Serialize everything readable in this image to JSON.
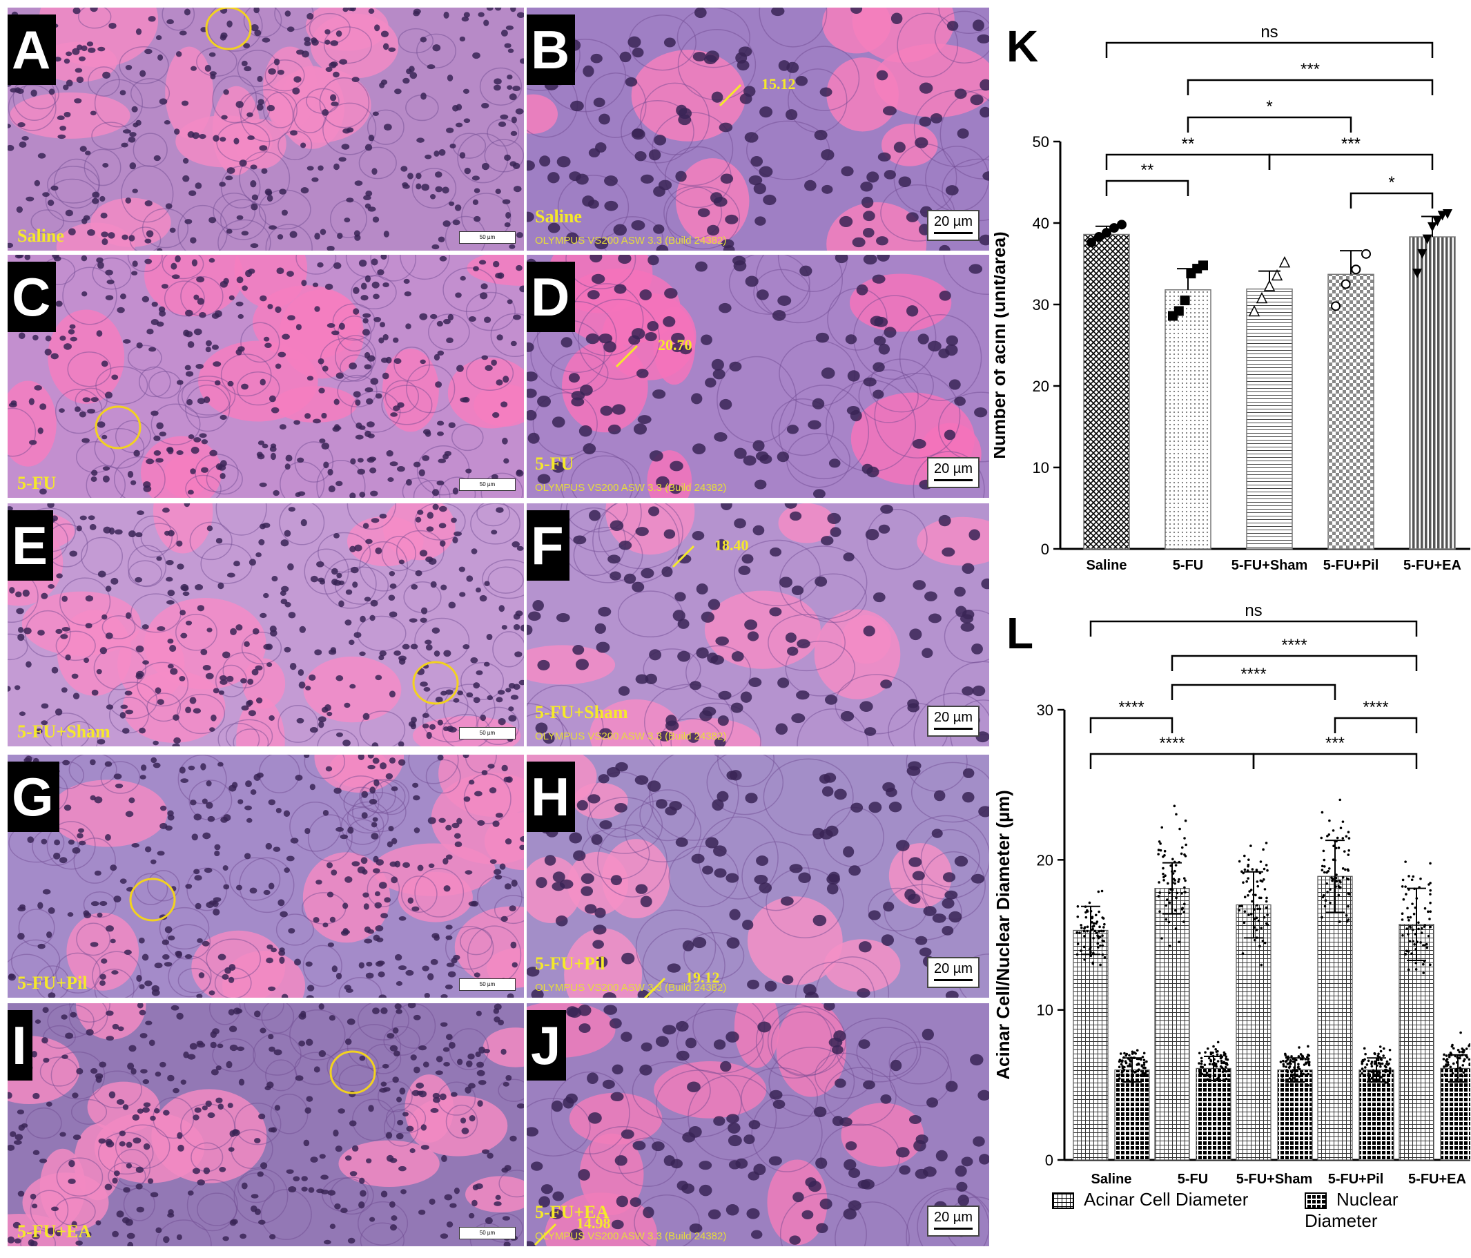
{
  "panels": [
    {
      "letter": "A",
      "group": "Saline",
      "scope": "",
      "measure": "",
      "scale": "50 µm",
      "tint": "#b78ac7",
      "lumen": "#f28ac4"
    },
    {
      "letter": "B",
      "group": "Saline",
      "scope": "OLYMPUS VS200 ASW 3.3 (Build 24382)",
      "measure": "15.12",
      "scale": "20 µm",
      "tint": "#9f7fc4",
      "lumen": "#f47fbd"
    },
    {
      "letter": "C",
      "group": "5-FU",
      "scope": "",
      "measure": "",
      "scale": "50 µm",
      "tint": "#c38fcf",
      "lumen": "#f57ec0"
    },
    {
      "letter": "D",
      "group": "5-FU",
      "scope": "OLYMPUS VS200 ASW 3.3 (Build 24382)",
      "measure": "20.70",
      "scale": "20 µm",
      "tint": "#a884c8",
      "lumen": "#f473bb"
    },
    {
      "letter": "E",
      "group": "5-FU+Sham",
      "scope": "",
      "measure": "",
      "scale": "50 µm",
      "tint": "#c49bd4",
      "lumen": "#f58cc7"
    },
    {
      "letter": "F",
      "group": "5-FU+Sham",
      "scope": "OLYMPUS VS200 ASW 3.3 (Build 24382)",
      "measure": "18.40",
      "scale": "20 µm",
      "tint": "#b593cf",
      "lumen": "#f38cc6"
    },
    {
      "letter": "G",
      "group": "5-FU+Pil",
      "scope": "",
      "measure": "",
      "scale": "50 µm",
      "tint": "#a48bc9",
      "lumen": "#f28ac3"
    },
    {
      "letter": "H",
      "group": "5-FU+Pil",
      "scope": "OLYMPUS VS200 ASW 3.3 (Build 24382)",
      "measure": "19.12",
      "scale": "20 µm",
      "tint": "#a38ec8",
      "lumen": "#f490c6"
    },
    {
      "letter": "I",
      "group": "5-FU+EA",
      "scope": "",
      "measure": "",
      "scale": "50 µm",
      "tint": "#9378b5",
      "lumen": "#f28ac2"
    },
    {
      "letter": "J",
      "group": "5-FU+EA",
      "scope": "OLYMPUS VS200 ASW 3.3 (Build 24382)",
      "measure": "14.98",
      "scale": "20 µm",
      "tint": "#9c80c0",
      "lumen": "#f07cba"
    }
  ],
  "chart_data": [
    {
      "panel_letter": "K",
      "type": "bar",
      "title": "",
      "xlabel": "",
      "ylabel": "Number of acini (unit/area)",
      "ylim": [
        0,
        50
      ],
      "yticks": [
        0,
        10,
        20,
        30,
        40,
        50
      ],
      "categories": [
        "Saline",
        "5-FU",
        "5-FU+Sham",
        "5-FU+Pil",
        "5-FU+EA"
      ],
      "values": [
        38.6,
        31.8,
        31.9,
        33.7,
        38.3
      ],
      "errors": [
        1.0,
        2.6,
        2.2,
        2.9,
        2.5
      ],
      "points": [
        [
          37.6,
          38.3,
          38.8,
          39.4,
          39.8
        ],
        [
          28.6,
          29.2,
          30.5,
          33.8,
          34.4,
          34.8
        ],
        [
          29.2,
          30.8,
          32.3,
          33.6,
          35.2
        ],
        [
          29.8,
          32.5,
          34.3,
          36.2
        ],
        [
          33.8,
          36.2,
          38.0,
          39.5,
          40.2,
          40.9,
          41.1
        ]
      ],
      "point_markers": [
        "circle",
        "square",
        "triangle-up",
        "circle-open",
        "triangle-down"
      ],
      "significance": [
        {
          "from": 0,
          "to": 4,
          "label": "ns"
        },
        {
          "from": 1,
          "to": 4,
          "label": "***"
        },
        {
          "from": 1,
          "to": 3,
          "label": "*"
        },
        {
          "from": 0,
          "to": 2,
          "label": "**"
        },
        {
          "from": 2,
          "to": 4,
          "label": "***"
        },
        {
          "from": 0,
          "to": 1,
          "label": "**"
        },
        {
          "from": 3,
          "to": 4,
          "label": "*"
        }
      ]
    },
    {
      "panel_letter": "L",
      "type": "bar",
      "title": "",
      "xlabel": "",
      "ylabel": "Acinar  Cell/Nuclear  Diameter (µm)",
      "ylim": [
        0,
        30
      ],
      "yticks": [
        0,
        10,
        20,
        30
      ],
      "categories": [
        "Saline",
        "5-FU",
        "5-FU+Sham",
        "5-FU+Pil",
        "5-FU+EA"
      ],
      "series": [
        {
          "name": "Acinar Cell Diameter",
          "values": [
            15.3,
            18.1,
            17.0,
            18.9,
            15.7
          ],
          "errors": [
            1.6,
            1.7,
            2.2,
            2.4,
            2.4
          ],
          "range": [
            [
              12.2,
              18.6
            ],
            [
              12.9,
              24.6
            ],
            [
              12.5,
              22.6
            ],
            [
              13.7,
              24.9
            ],
            [
              10.4,
              21.4
            ]
          ]
        },
        {
          "name": "Nuclear Diameter",
          "values": [
            6.0,
            6.1,
            6.0,
            6.0,
            6.1
          ],
          "errors": [
            0.8,
            0.8,
            0.8,
            0.8,
            0.9
          ],
          "range": [
            [
              4.6,
              8.0
            ],
            [
              4.7,
              8.2
            ],
            [
              4.7,
              8.0
            ],
            [
              4.7,
              7.9
            ],
            [
              4.8,
              8.8
            ]
          ]
        }
      ],
      "significance": [
        {
          "from": 0,
          "to": 4,
          "label": "ns"
        },
        {
          "from": 1,
          "to": 4,
          "label": "****"
        },
        {
          "from": 1,
          "to": 3,
          "label": "****"
        },
        {
          "from": 0,
          "to": 1,
          "label": "****"
        },
        {
          "from": 3,
          "to": 4,
          "label": "****"
        },
        {
          "from": 0,
          "to": 2,
          "label": "****"
        },
        {
          "from": 2,
          "to": 4,
          "label": "***"
        }
      ]
    }
  ]
}
